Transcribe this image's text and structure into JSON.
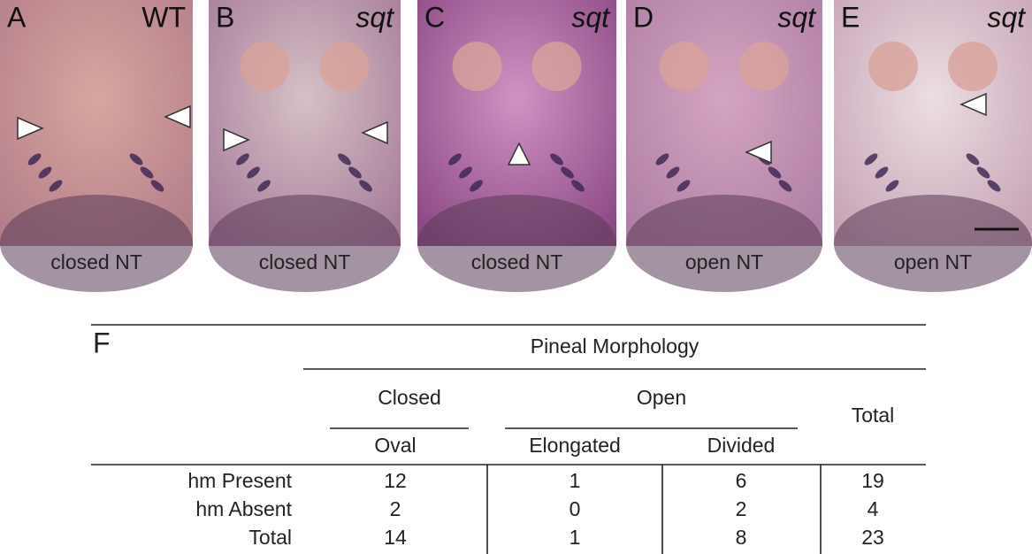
{
  "panels": [
    {
      "letter": "A",
      "genotype": "WT",
      "caption": "closed NT"
    },
    {
      "letter": "B",
      "genotype": "sqt",
      "caption": "closed NT"
    },
    {
      "letter": "C",
      "genotype": "sqt",
      "caption": "closed NT"
    },
    {
      "letter": "D",
      "genotype": "sqt",
      "caption": "open NT"
    },
    {
      "letter": "E",
      "genotype": "sqt",
      "caption": "open NT"
    }
  ],
  "table": {
    "label": "F",
    "title": "Pineal Morphology",
    "groups": [
      "Closed",
      "Open",
      "Total"
    ],
    "subheaders": [
      "Oval",
      "Elongated",
      "Divided"
    ],
    "rows": [
      [
        "hm Present",
        "12",
        "1",
        "6",
        "19"
      ],
      [
        "hm Absent",
        "2",
        "0",
        "2",
        "4"
      ],
      [
        "Total",
        "14",
        "1",
        "8",
        "23"
      ]
    ]
  }
}
